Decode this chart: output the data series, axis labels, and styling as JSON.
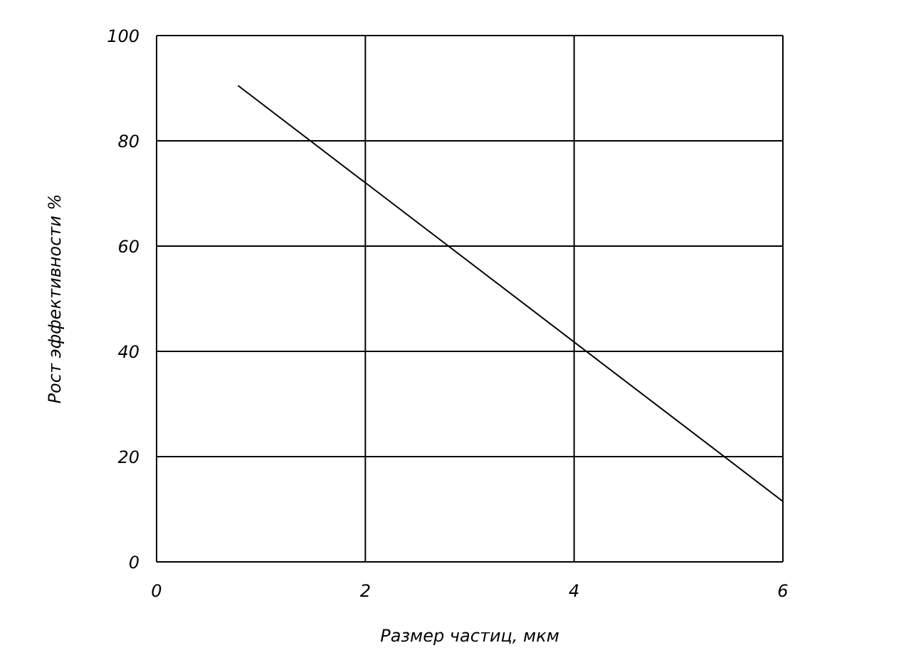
{
  "chart_data": {
    "type": "line",
    "xlabel": "Размер частиц, мкм",
    "ylabel": "Рост эффективности %",
    "x": [
      0.78,
      6
    ],
    "series": [
      {
        "color": "#000000",
        "values": [
          90.5,
          11.5
        ]
      }
    ],
    "xlim": [
      0,
      6
    ],
    "xticks": [
      0,
      2,
      4,
      6
    ],
    "ylim": [
      0,
      100
    ],
    "yticks": [
      0,
      20,
      40,
      60,
      80,
      100
    ],
    "grid": true,
    "legend": false,
    "marker": "none",
    "line_style": "solid"
  }
}
